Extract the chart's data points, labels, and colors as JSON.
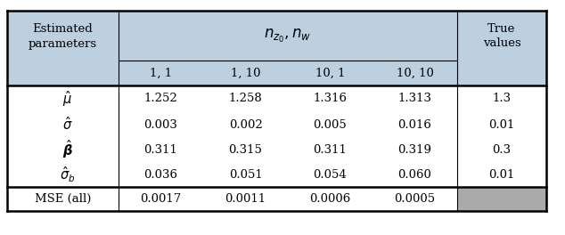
{
  "param_labels": [
    "$\\hat{\\mu}$",
    "$\\hat{\\sigma}$",
    "$\\hat{\\boldsymbol{\\beta}}$",
    "$\\hat{\\sigma}_b$"
  ],
  "data_rows": [
    [
      "1.252",
      "1.258",
      "1.316",
      "1.313",
      "1.3"
    ],
    [
      "0.003",
      "0.002",
      "0.005",
      "0.016",
      "0.01"
    ],
    [
      "0.311",
      "0.315",
      "0.311",
      "0.319",
      "0.3"
    ],
    [
      "0.036",
      "0.051",
      "0.054",
      "0.060",
      "0.01"
    ]
  ],
  "mse_vals": [
    "0.0017",
    "0.0011",
    "0.0006",
    "0.0005"
  ],
  "col_headers": [
    "1, 1",
    "1, 10",
    "10, 1",
    "10, 10"
  ],
  "header_bg": "#bdd0e0",
  "mse_gray": "#aaaaaa",
  "white": "#ffffff",
  "figsize": [
    6.34,
    2.64
  ],
  "dpi": 100,
  "lw_thick": 1.8,
  "lw_thin": 0.8,
  "fontsize_main": 9.5,
  "fontsize_math": 10.5
}
